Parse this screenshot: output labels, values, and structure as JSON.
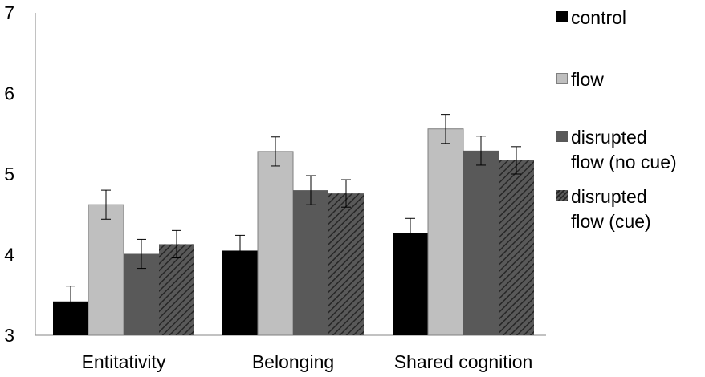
{
  "chart_data": {
    "type": "bar",
    "categories": [
      "Entitativity",
      "Belonging",
      "Shared cognition"
    ],
    "series": [
      {
        "name": "control",
        "values": [
          3.42,
          4.05,
          4.27
        ],
        "errors": [
          0.19,
          0.19,
          0.18
        ],
        "color": "#000000"
      },
      {
        "name": "flow",
        "values": [
          4.62,
          5.28,
          5.56
        ],
        "errors": [
          0.18,
          0.18,
          0.18
        ],
        "color": "#bfbfbf"
      },
      {
        "name": "disrupted\nflow (no cue)",
        "values": [
          4.01,
          4.8,
          5.29
        ],
        "errors": [
          0.18,
          0.18,
          0.18
        ],
        "color": "#595959"
      },
      {
        "name": "disrupted\nflow (cue)",
        "values": [
          4.13,
          4.76,
          5.17
        ],
        "errors": [
          0.17,
          0.17,
          0.17
        ],
        "color": "#595959",
        "pattern": "diagonal-hatch"
      }
    ],
    "ylim": [
      3,
      7
    ],
    "yticks": [
      "3",
      "4",
      "5",
      "6",
      "7"
    ],
    "xlabel": "",
    "ylabel": "",
    "grid": false,
    "legend_position": "right"
  }
}
